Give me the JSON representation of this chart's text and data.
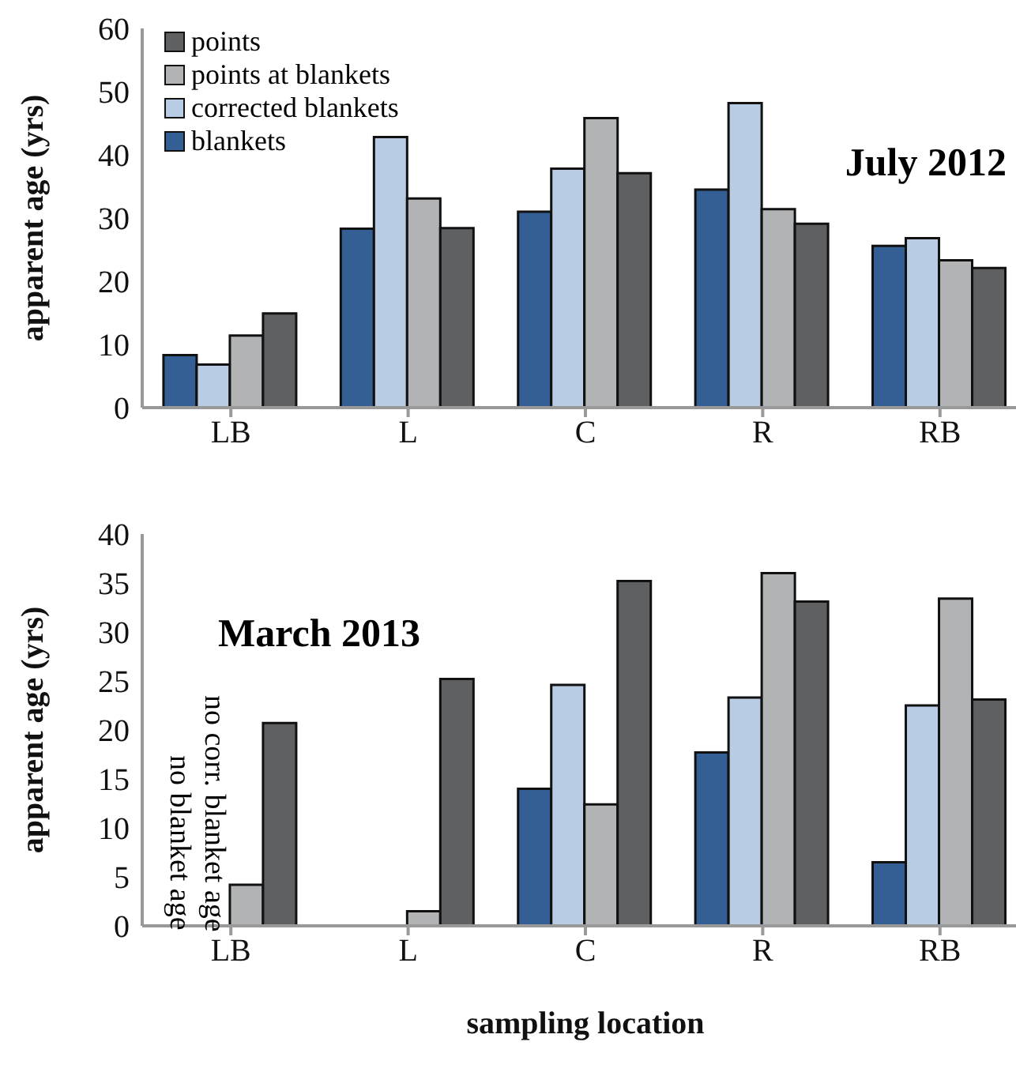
{
  "chart_data": [
    {
      "type": "bar",
      "title": "July 2012",
      "ylabel": "apparent age (yrs)",
      "categories": [
        "LB",
        "L",
        "C",
        "R",
        "RB"
      ],
      "ylim": [
        0,
        60
      ],
      "yticks": [
        0,
        10,
        20,
        30,
        40,
        50,
        60
      ],
      "grid": false,
      "legend": "top left",
      "series": [
        {
          "name": "blankets",
          "color": "#345f94",
          "values": [
            8.3,
            28.3,
            31,
            34.5,
            25.6
          ]
        },
        {
          "name": "corrected blankets",
          "color": "#b8cce4",
          "values": [
            6.8,
            42.8,
            37.8,
            48.2,
            26.8
          ]
        },
        {
          "name": "points at blankets",
          "color": "#b2b3b5",
          "values": [
            11.4,
            33.1,
            45.8,
            31.4,
            23.3
          ]
        },
        {
          "name": "points",
          "color": "#5f6062",
          "values": [
            14.9,
            28.4,
            37.1,
            29.1,
            22.1
          ]
        }
      ]
    },
    {
      "type": "bar",
      "title": "March 2013",
      "ylabel": "apparent age (yrs)",
      "xlabel": "sampling location",
      "categories": [
        "LB",
        "L",
        "C",
        "R",
        "RB"
      ],
      "ylim": [
        0,
        40
      ],
      "yticks": [
        0,
        5,
        10,
        15,
        20,
        25,
        30,
        35,
        40
      ],
      "grid": false,
      "legend": false,
      "annotations": [
        "no corr. blanket age",
        "no blanket age"
      ],
      "series": [
        {
          "color": "#345f94",
          "values": [
            null,
            null,
            14,
            17.7,
            6.5
          ]
        },
        {
          "color": "#b8cce4",
          "values": [
            null,
            null,
            24.6,
            23.3,
            22.5
          ]
        },
        {
          "color": "#b2b3b5",
          "values": [
            4.2,
            1.5,
            12.4,
            36,
            33.4
          ]
        },
        {
          "color": "#5f6062",
          "values": [
            20.7,
            25.2,
            35.2,
            33.1,
            23.1
          ]
        }
      ]
    }
  ]
}
